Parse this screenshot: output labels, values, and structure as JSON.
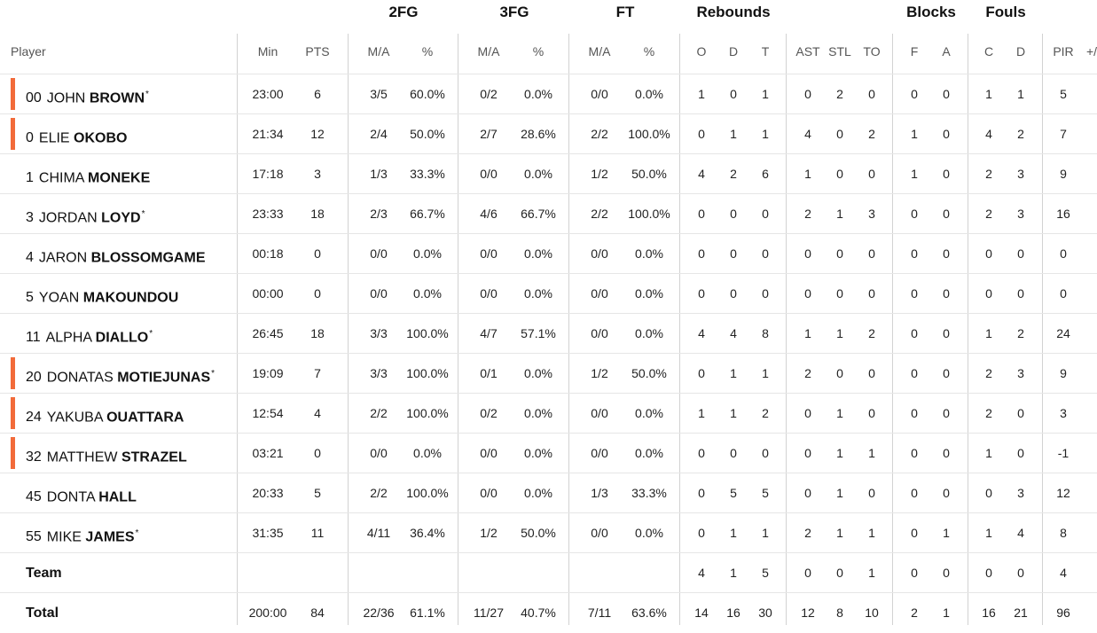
{
  "groups": {
    "twofg": "2FG",
    "threefg": "3FG",
    "ft": "FT",
    "rebounds": "Rebounds",
    "blocks": "Blocks",
    "fouls": "Fouls"
  },
  "columns": {
    "player": "Player",
    "min": "Min",
    "pts": "PTS",
    "fg2_ma": "M/A",
    "fg2_pct": "%",
    "fg3_ma": "M/A",
    "fg3_pct": "%",
    "ft_ma": "M/A",
    "ft_pct": "%",
    "reb_o": "O",
    "reb_d": "D",
    "reb_t": "T",
    "ast": "AST",
    "stl": "STL",
    "to": "TO",
    "blk_f": "F",
    "blk_a": "A",
    "foul_c": "C",
    "foul_d": "D",
    "pir": "PIR",
    "pm": "+/-"
  },
  "players": [
    {
      "num": "00",
      "first": "JOHN",
      "last": "BROWN",
      "star": "*",
      "starter": true,
      "min": "23:00",
      "pts": "6",
      "fg2": "3/5",
      "fg2p": "60.0%",
      "fg3": "0/2",
      "fg3p": "0.0%",
      "ft": "0/0",
      "ftp": "0.0%",
      "o": "1",
      "d": "0",
      "t": "1",
      "ast": "0",
      "stl": "2",
      "to": "0",
      "bf": "0",
      "ba": "0",
      "fc": "1",
      "fd": "1",
      "pir": "5"
    },
    {
      "num": "0",
      "first": "ELIE",
      "last": "OKOBO",
      "star": "",
      "starter": true,
      "min": "21:34",
      "pts": "12",
      "fg2": "2/4",
      "fg2p": "50.0%",
      "fg3": "2/7",
      "fg3p": "28.6%",
      "ft": "2/2",
      "ftp": "100.0%",
      "o": "0",
      "d": "1",
      "t": "1",
      "ast": "4",
      "stl": "0",
      "to": "2",
      "bf": "1",
      "ba": "0",
      "fc": "4",
      "fd": "2",
      "pir": "7"
    },
    {
      "num": "1",
      "first": "CHIMA",
      "last": "MONEKE",
      "star": "",
      "starter": false,
      "min": "17:18",
      "pts": "3",
      "fg2": "1/3",
      "fg2p": "33.3%",
      "fg3": "0/0",
      "fg3p": "0.0%",
      "ft": "1/2",
      "ftp": "50.0%",
      "o": "4",
      "d": "2",
      "t": "6",
      "ast": "1",
      "stl": "0",
      "to": "0",
      "bf": "1",
      "ba": "0",
      "fc": "2",
      "fd": "3",
      "pir": "9"
    },
    {
      "num": "3",
      "first": "JORDAN",
      "last": "LOYD",
      "star": "*",
      "starter": false,
      "min": "23:33",
      "pts": "18",
      "fg2": "2/3",
      "fg2p": "66.7%",
      "fg3": "4/6",
      "fg3p": "66.7%",
      "ft": "2/2",
      "ftp": "100.0%",
      "o": "0",
      "d": "0",
      "t": "0",
      "ast": "2",
      "stl": "1",
      "to": "3",
      "bf": "0",
      "ba": "0",
      "fc": "2",
      "fd": "3",
      "pir": "16"
    },
    {
      "num": "4",
      "first": "JARON",
      "last": "BLOSSOMGAME",
      "star": "",
      "starter": false,
      "min": "00:18",
      "pts": "0",
      "fg2": "0/0",
      "fg2p": "0.0%",
      "fg3": "0/0",
      "fg3p": "0.0%",
      "ft": "0/0",
      "ftp": "0.0%",
      "o": "0",
      "d": "0",
      "t": "0",
      "ast": "0",
      "stl": "0",
      "to": "0",
      "bf": "0",
      "ba": "0",
      "fc": "0",
      "fd": "0",
      "pir": "0"
    },
    {
      "num": "5",
      "first": "YOAN",
      "last": "MAKOUNDOU",
      "star": "",
      "starter": false,
      "min": "00:00",
      "pts": "0",
      "fg2": "0/0",
      "fg2p": "0.0%",
      "fg3": "0/0",
      "fg3p": "0.0%",
      "ft": "0/0",
      "ftp": "0.0%",
      "o": "0",
      "d": "0",
      "t": "0",
      "ast": "0",
      "stl": "0",
      "to": "0",
      "bf": "0",
      "ba": "0",
      "fc": "0",
      "fd": "0",
      "pir": "0"
    },
    {
      "num": "11",
      "first": "ALPHA",
      "last": "DIALLO",
      "star": "*",
      "starter": false,
      "min": "26:45",
      "pts": "18",
      "fg2": "3/3",
      "fg2p": "100.0%",
      "fg3": "4/7",
      "fg3p": "57.1%",
      "ft": "0/0",
      "ftp": "0.0%",
      "o": "4",
      "d": "4",
      "t": "8",
      "ast": "1",
      "stl": "1",
      "to": "2",
      "bf": "0",
      "ba": "0",
      "fc": "1",
      "fd": "2",
      "pir": "24"
    },
    {
      "num": "20",
      "first": "DONATAS",
      "last": "MOTIEJUNAS",
      "star": "*",
      "starter": true,
      "min": "19:09",
      "pts": "7",
      "fg2": "3/3",
      "fg2p": "100.0%",
      "fg3": "0/1",
      "fg3p": "0.0%",
      "ft": "1/2",
      "ftp": "50.0%",
      "o": "0",
      "d": "1",
      "t": "1",
      "ast": "2",
      "stl": "0",
      "to": "0",
      "bf": "0",
      "ba": "0",
      "fc": "2",
      "fd": "3",
      "pir": "9"
    },
    {
      "num": "24",
      "first": "YAKUBA",
      "last": "OUATTARA",
      "star": "",
      "starter": true,
      "min": "12:54",
      "pts": "4",
      "fg2": "2/2",
      "fg2p": "100.0%",
      "fg3": "0/2",
      "fg3p": "0.0%",
      "ft": "0/0",
      "ftp": "0.0%",
      "o": "1",
      "d": "1",
      "t": "2",
      "ast": "0",
      "stl": "1",
      "to": "0",
      "bf": "0",
      "ba": "0",
      "fc": "2",
      "fd": "0",
      "pir": "3"
    },
    {
      "num": "32",
      "first": "MATTHEW",
      "last": "STRAZEL",
      "star": "",
      "starter": true,
      "min": "03:21",
      "pts": "0",
      "fg2": "0/0",
      "fg2p": "0.0%",
      "fg3": "0/0",
      "fg3p": "0.0%",
      "ft": "0/0",
      "ftp": "0.0%",
      "o": "0",
      "d": "0",
      "t": "0",
      "ast": "0",
      "stl": "1",
      "to": "1",
      "bf": "0",
      "ba": "0",
      "fc": "1",
      "fd": "0",
      "pir": "-1"
    },
    {
      "num": "45",
      "first": "DONTA",
      "last": "HALL",
      "star": "",
      "starter": false,
      "min": "20:33",
      "pts": "5",
      "fg2": "2/2",
      "fg2p": "100.0%",
      "fg3": "0/0",
      "fg3p": "0.0%",
      "ft": "1/3",
      "ftp": "33.3%",
      "o": "0",
      "d": "5",
      "t": "5",
      "ast": "0",
      "stl": "1",
      "to": "0",
      "bf": "0",
      "ba": "0",
      "fc": "0",
      "fd": "3",
      "pir": "12"
    },
    {
      "num": "55",
      "first": "MIKE",
      "last": "JAMES",
      "star": "*",
      "starter": false,
      "min": "31:35",
      "pts": "11",
      "fg2": "4/11",
      "fg2p": "36.4%",
      "fg3": "1/2",
      "fg3p": "50.0%",
      "ft": "0/0",
      "ftp": "0.0%",
      "o": "0",
      "d": "1",
      "t": "1",
      "ast": "2",
      "stl": "1",
      "to": "1",
      "bf": "0",
      "ba": "1",
      "fc": "1",
      "fd": "4",
      "pir": "8"
    }
  ],
  "team": {
    "label": "Team",
    "o": "4",
    "d": "1",
    "t": "5",
    "ast": "0",
    "stl": "0",
    "to": "1",
    "bf": "0",
    "ba": "0",
    "fc": "0",
    "fd": "0",
    "pir": "4"
  },
  "total": {
    "label": "Total",
    "min": "200:00",
    "pts": "84",
    "fg2": "22/36",
    "fg2p": "61.1%",
    "fg3": "11/27",
    "fg3p": "40.7%",
    "ft": "7/11",
    "ftp": "63.6%",
    "o": "14",
    "d": "16",
    "t": "30",
    "ast": "12",
    "stl": "8",
    "to": "10",
    "bf": "2",
    "ba": "1",
    "fc": "16",
    "fd": "21",
    "pir": "96"
  },
  "colors": {
    "starter_bar": "#f26b3a",
    "divider": "#d2d2d2"
  }
}
